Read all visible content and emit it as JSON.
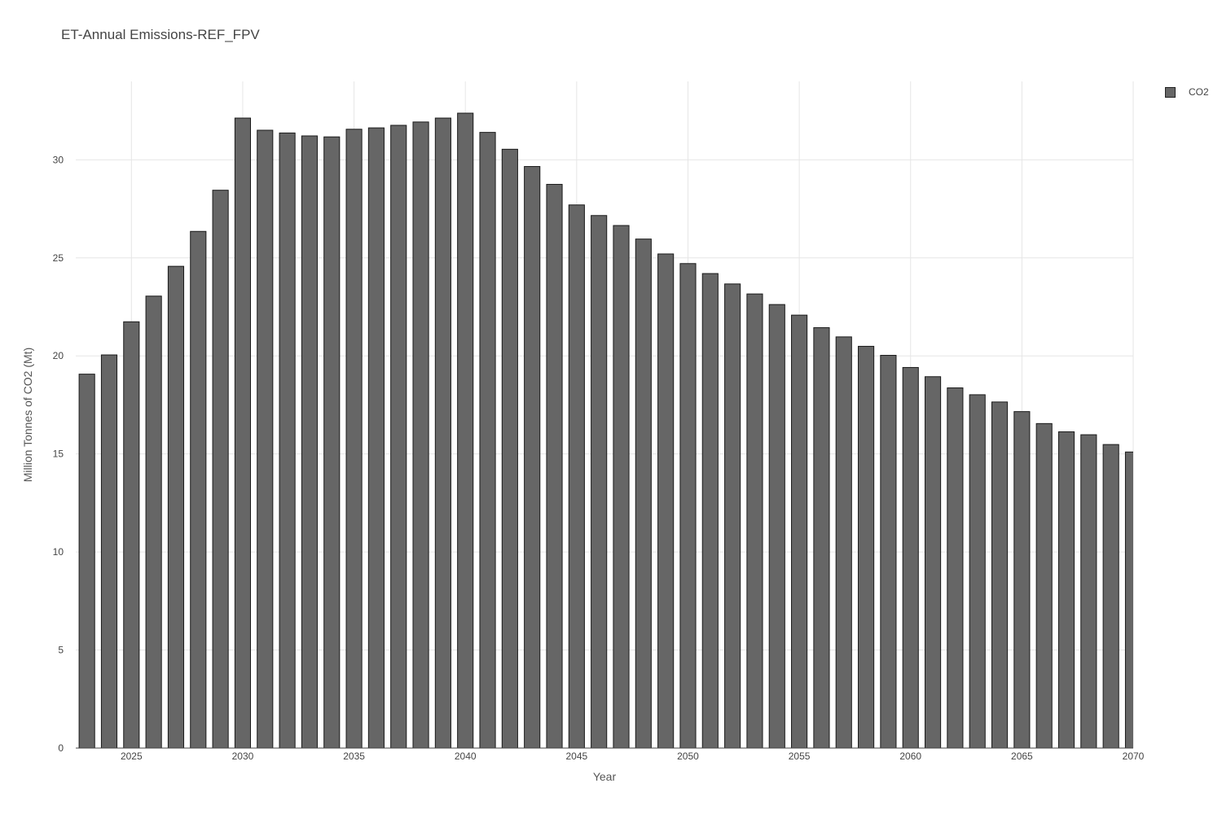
{
  "chart_data": {
    "type": "bar",
    "title": "ET-Annual Emissions-REF_FPV",
    "xlabel": "Year",
    "ylabel": "Million Tonnes of CO2  (Mt)",
    "xlim": [
      2022.5,
      2070
    ],
    "ylim": [
      0,
      34
    ],
    "x_ticks": [
      2025,
      2030,
      2035,
      2040,
      2045,
      2050,
      2055,
      2060,
      2065,
      2070
    ],
    "y_ticks": [
      0,
      5,
      10,
      15,
      20,
      25,
      30
    ],
    "grid": true,
    "legend_position": "top-right",
    "bar_color": "#666666",
    "bar_edge_color": "#1a1a1a",
    "categories": [
      2023,
      2024,
      2025,
      2026,
      2027,
      2028,
      2029,
      2030,
      2031,
      2032,
      2033,
      2034,
      2035,
      2036,
      2037,
      2038,
      2039,
      2040,
      2041,
      2042,
      2043,
      2044,
      2045,
      2046,
      2047,
      2048,
      2049,
      2050,
      2051,
      2052,
      2053,
      2054,
      2055,
      2056,
      2057,
      2058,
      2059,
      2060,
      2061,
      2062,
      2063,
      2064,
      2065,
      2066,
      2067,
      2068,
      2069,
      2070
    ],
    "series": [
      {
        "name": "CO2",
        "values": [
          19.07,
          20.05,
          21.74,
          23.05,
          24.57,
          26.35,
          28.45,
          32.13,
          31.51,
          31.37,
          31.22,
          31.17,
          31.56,
          31.63,
          31.76,
          31.93,
          32.13,
          32.38,
          31.4,
          30.54,
          29.66,
          28.75,
          27.7,
          27.16,
          26.65,
          25.96,
          25.2,
          24.71,
          24.2,
          23.67,
          23.16,
          22.62,
          22.08,
          21.44,
          20.97,
          20.49,
          20.03,
          19.41,
          18.94,
          18.37,
          18.02,
          17.65,
          17.16,
          16.55,
          16.13,
          15.98,
          15.48,
          15.1
        ]
      }
    ]
  }
}
